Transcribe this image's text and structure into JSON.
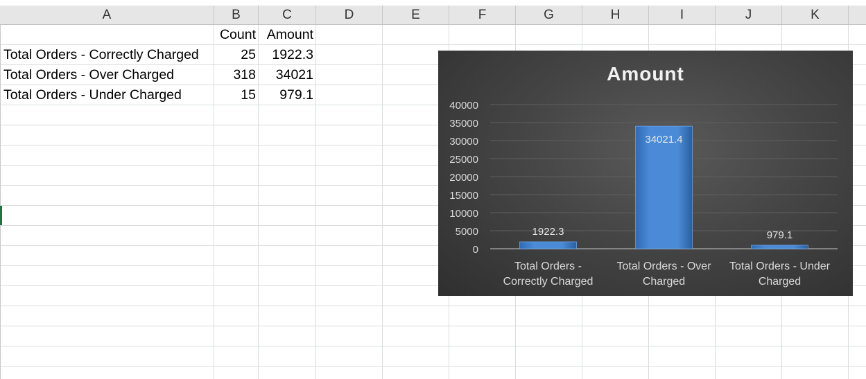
{
  "columns": [
    "A",
    "B",
    "C",
    "D",
    "E",
    "F",
    "G",
    "H",
    "I",
    "J",
    "K"
  ],
  "table": {
    "header": {
      "count": "Count",
      "amount": "Amount"
    },
    "rows": [
      {
        "label": "Total Orders - Correctly Charged",
        "count": "25",
        "amount": "1922.3"
      },
      {
        "label": "Total Orders - Over Charged",
        "count": "318",
        "amount": "34021"
      },
      {
        "label": "Total Orders - Under Charged",
        "count": "15",
        "amount": "979.1"
      }
    ]
  },
  "chart_data": {
    "type": "bar",
    "title": "Amount",
    "categories": [
      [
        "Total Orders -",
        "Correctly Charged"
      ],
      [
        "Total Orders - Over",
        "Charged"
      ],
      [
        "Total Orders - Under",
        "Charged"
      ]
    ],
    "values": [
      1922.3,
      34021.4,
      979.1
    ],
    "data_labels": [
      "1922.3",
      "34021.4",
      "979.1"
    ],
    "yticks": [
      "0",
      "5000",
      "10000",
      "15000",
      "20000",
      "25000",
      "30000",
      "35000",
      "40000"
    ],
    "ylim": [
      0,
      40000
    ],
    "grid": true,
    "colors": {
      "bar": "#4a8ad6",
      "background": "#404040",
      "text": "#d9d9d9",
      "title": "#f2f2f2"
    }
  }
}
